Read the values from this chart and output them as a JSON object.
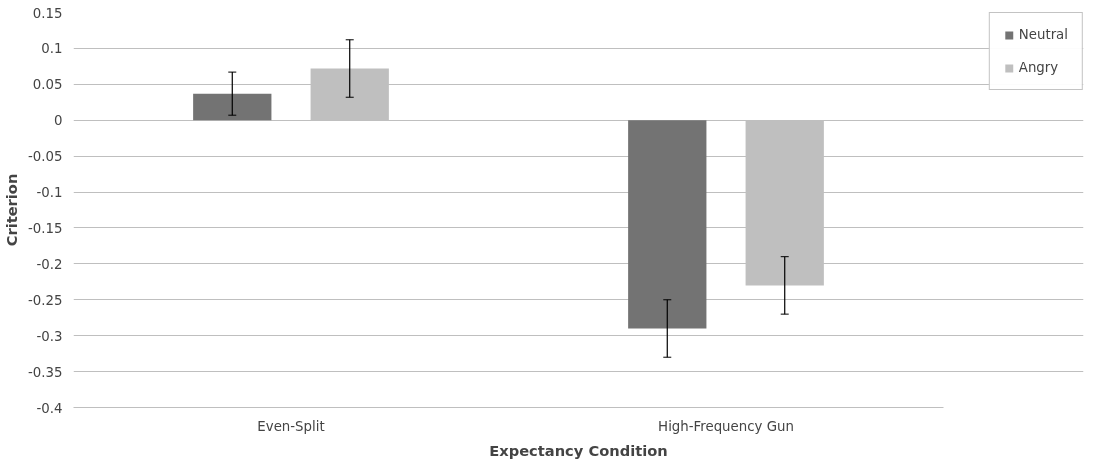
{
  "chart_data": {
    "type": "bar",
    "xlabel": "Expectancy Condition",
    "ylabel": "Criterion",
    "categories": [
      "Even-Split",
      "High-Frequency Gun"
    ],
    "series": [
      {
        "name": "Neutral",
        "color": "#737373",
        "values": [
          0.037,
          -0.29
        ],
        "errors": [
          0.03,
          0.04
        ]
      },
      {
        "name": "Angry",
        "color": "#bfbfbf",
        "values": [
          0.072,
          -0.23
        ],
        "errors": [
          0.04,
          0.04
        ]
      }
    ],
    "ylim": [
      -0.4,
      0.15
    ],
    "yticks": [
      -0.4,
      -0.35,
      -0.3,
      -0.25,
      -0.2,
      -0.15,
      -0.1,
      -0.05,
      0,
      0.05,
      0.1,
      0.15
    ],
    "grid": "y",
    "legend": "right"
  }
}
